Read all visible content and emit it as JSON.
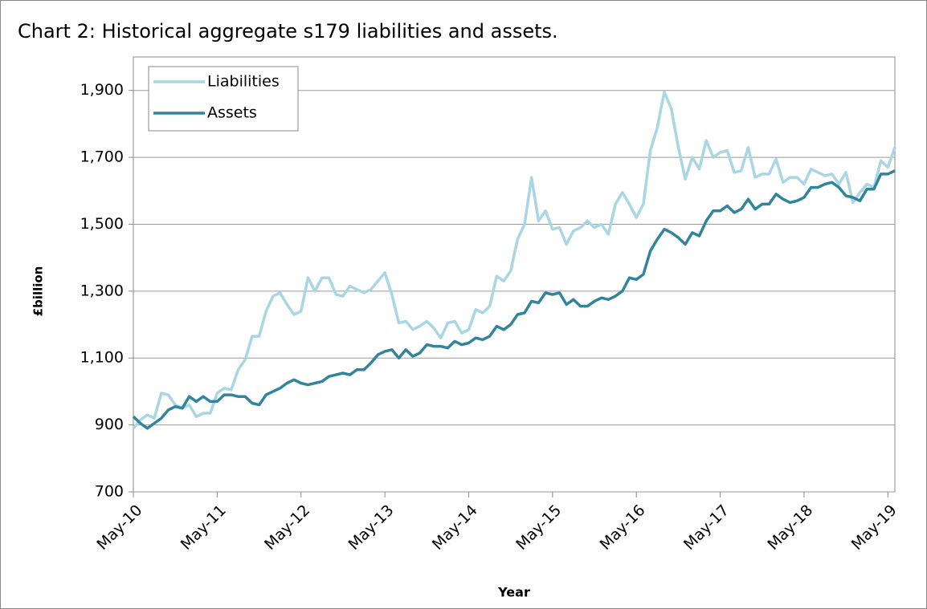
{
  "chart_data": {
    "type": "line",
    "title": "Chart 2: Historical aggregate s179 liabilities and assets.",
    "y_label": "£billion",
    "x_label": "Year",
    "categories": [
      "May-10",
      null,
      null,
      null,
      null,
      null,
      null,
      null,
      null,
      null,
      null,
      null,
      "May-11",
      null,
      null,
      null,
      null,
      null,
      null,
      null,
      null,
      null,
      null,
      null,
      "May-12",
      null,
      null,
      null,
      null,
      null,
      null,
      null,
      null,
      null,
      null,
      null,
      "May-13",
      null,
      null,
      null,
      null,
      null,
      null,
      null,
      null,
      null,
      null,
      null,
      "May-14",
      null,
      null,
      null,
      null,
      null,
      null,
      null,
      null,
      null,
      null,
      null,
      "May-15",
      null,
      null,
      null,
      null,
      null,
      null,
      null,
      null,
      null,
      null,
      null,
      "May-16",
      null,
      null,
      null,
      null,
      null,
      null,
      null,
      null,
      null,
      null,
      null,
      "May-17",
      null,
      null,
      null,
      null,
      null,
      null,
      null,
      null,
      null,
      null,
      null,
      "May-18",
      null,
      null,
      null,
      null,
      null,
      null,
      null,
      null,
      null,
      null,
      null,
      "May-19",
      null
    ],
    "series": [
      {
        "name": "Liabilities",
        "color": "#a9d6e5",
        "values": [
          890,
          915,
          930,
          920,
          995,
          990,
          960,
          950,
          960,
          925,
          935,
          935,
          995,
          1010,
          1005,
          1065,
          1095,
          1165,
          1165,
          1240,
          1285,
          1295,
          1260,
          1230,
          1240,
          1340,
          1300,
          1340,
          1340,
          1290,
          1285,
          1315,
          1305,
          1295,
          1305,
          1330,
          1355,
          1290,
          1205,
          1210,
          1185,
          1195,
          1210,
          1190,
          1160,
          1205,
          1210,
          1175,
          1185,
          1245,
          1235,
          1255,
          1345,
          1330,
          1360,
          1455,
          1500,
          1640,
          1510,
          1540,
          1485,
          1490,
          1440,
          1480,
          1490,
          1510,
          1490,
          1500,
          1470,
          1560,
          1595,
          1560,
          1520,
          1560,
          1720,
          1790,
          1895,
          1845,
          1730,
          1635,
          1700,
          1665,
          1750,
          1700,
          1715,
          1720,
          1655,
          1660,
          1730,
          1640,
          1650,
          1650,
          1695,
          1625,
          1640,
          1640,
          1620,
          1665,
          1655,
          1645,
          1650,
          1620,
          1655,
          1565,
          1595,
          1620,
          1610,
          1690,
          1670,
          1730
        ]
      },
      {
        "name": "Assets",
        "color": "#31849b",
        "values": [
          925,
          905,
          890,
          905,
          920,
          945,
          955,
          950,
          985,
          970,
          985,
          970,
          970,
          990,
          990,
          985,
          985,
          965,
          960,
          990,
          1000,
          1010,
          1025,
          1035,
          1025,
          1020,
          1025,
          1030,
          1045,
          1050,
          1055,
          1050,
          1065,
          1065,
          1085,
          1110,
          1120,
          1125,
          1100,
          1125,
          1105,
          1115,
          1140,
          1135,
          1135,
          1130,
          1150,
          1140,
          1145,
          1160,
          1155,
          1165,
          1195,
          1185,
          1200,
          1230,
          1235,
          1270,
          1265,
          1295,
          1290,
          1295,
          1260,
          1275,
          1255,
          1255,
          1270,
          1280,
          1275,
          1285,
          1300,
          1340,
          1335,
          1350,
          1420,
          1455,
          1485,
          1475,
          1460,
          1440,
          1475,
          1465,
          1510,
          1540,
          1540,
          1555,
          1535,
          1545,
          1575,
          1545,
          1560,
          1560,
          1590,
          1575,
          1565,
          1570,
          1580,
          1610,
          1610,
          1620,
          1625,
          1610,
          1585,
          1580,
          1570,
          1605,
          1605,
          1650,
          1650,
          1660
        ]
      }
    ],
    "ylim": [
      700,
      2000
    ],
    "yticks": [
      700,
      900,
      {
        "value": 1100,
        "label": "1,100"
      },
      {
        "value": 1300,
        "label": "1,300"
      },
      {
        "value": 1500,
        "label": "1,500"
      },
      {
        "value": 1700,
        "label": "1,700"
      },
      {
        "value": 1900,
        "label": "1,900"
      }
    ],
    "grid": true,
    "legend": "top-left"
  }
}
